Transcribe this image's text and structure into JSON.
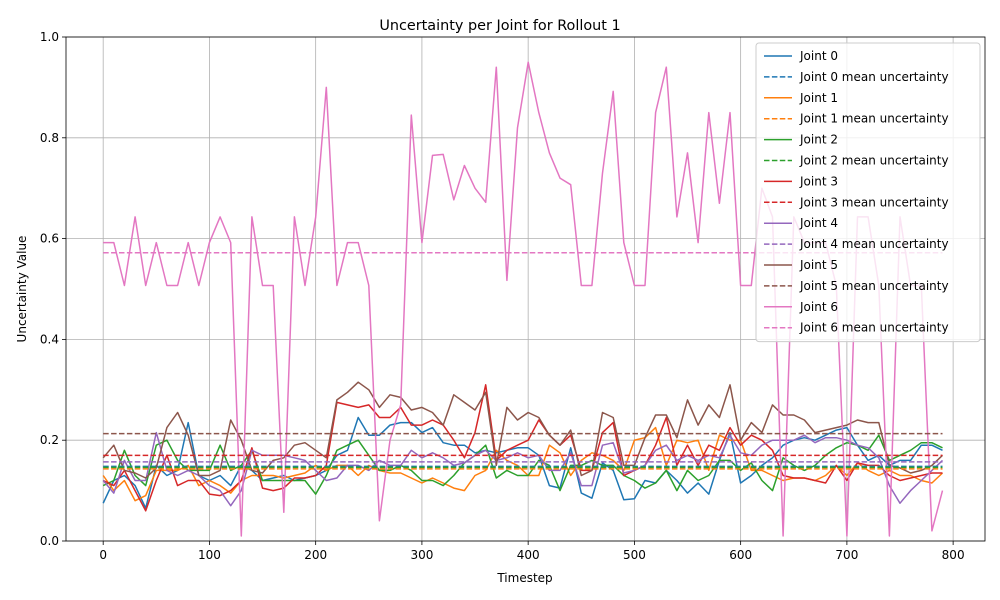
{
  "chart_data": {
    "type": "line",
    "title": "Uncertainty per Joint for Rollout 1",
    "xlabel": "Timestep",
    "ylabel": "Uncertainty Value",
    "xlim": [
      -35,
      830
    ],
    "ylim": [
      0.0,
      1.0
    ],
    "xticks": [
      "0",
      "100",
      "200",
      "300",
      "400",
      "500",
      "600",
      "700",
      "800"
    ],
    "yticks": [
      "0.0",
      "0.2",
      "0.4",
      "0.6",
      "0.8",
      "1.0"
    ],
    "grid": true,
    "legend_position": "top-right",
    "x": [
      0,
      10,
      20,
      30,
      40,
      50,
      60,
      70,
      80,
      90,
      100,
      110,
      120,
      130,
      140,
      150,
      160,
      170,
      180,
      190,
      200,
      210,
      220,
      230,
      240,
      250,
      260,
      270,
      280,
      290,
      300,
      310,
      320,
      330,
      340,
      350,
      360,
      370,
      380,
      390,
      400,
      410,
      420,
      430,
      440,
      450,
      460,
      470,
      480,
      490,
      500,
      510,
      520,
      530,
      540,
      550,
      560,
      570,
      580,
      590,
      600,
      610,
      620,
      630,
      640,
      650,
      660,
      670,
      680,
      690,
      700,
      710,
      720,
      730,
      740,
      750,
      760,
      770,
      780,
      790
    ],
    "series": [
      {
        "name": "Joint 0",
        "color": "#1f77b4",
        "mean": 0.148,
        "values": [
          0.075,
          0.12,
          0.13,
          0.11,
          0.065,
          0.15,
          0.13,
          0.14,
          0.235,
          0.13,
          0.12,
          0.13,
          0.11,
          0.15,
          0.14,
          0.12,
          0.125,
          0.13,
          0.12,
          0.125,
          0.13,
          0.14,
          0.17,
          0.18,
          0.245,
          0.21,
          0.21,
          0.23,
          0.235,
          0.235,
          0.215,
          0.225,
          0.195,
          0.19,
          0.19,
          0.175,
          0.18,
          0.175,
          0.18,
          0.185,
          0.185,
          0.17,
          0.11,
          0.105,
          0.185,
          0.095,
          0.085,
          0.155,
          0.14,
          0.082,
          0.084,
          0.12,
          0.115,
          0.14,
          0.12,
          0.095,
          0.115,
          0.093,
          0.16,
          0.215,
          0.115,
          0.13,
          0.15,
          0.165,
          0.19,
          0.2,
          0.205,
          0.2,
          0.21,
          0.22,
          0.225,
          0.19,
          0.16,
          0.17,
          0.15,
          0.16,
          0.16,
          0.19,
          0.19,
          0.18
        ]
      },
      {
        "name": "Joint 1",
        "color": "#ff7f0e",
        "mean": 0.143,
        "values": [
          0.13,
          0.1,
          0.12,
          0.08,
          0.09,
          0.14,
          0.14,
          0.14,
          0.15,
          0.11,
          0.12,
          0.11,
          0.095,
          0.12,
          0.13,
          0.13,
          0.13,
          0.125,
          0.13,
          0.135,
          0.15,
          0.14,
          0.15,
          0.15,
          0.13,
          0.15,
          0.14,
          0.135,
          0.135,
          0.125,
          0.115,
          0.125,
          0.115,
          0.105,
          0.1,
          0.13,
          0.14,
          0.18,
          0.16,
          0.15,
          0.13,
          0.13,
          0.19,
          0.175,
          0.13,
          0.16,
          0.175,
          0.17,
          0.16,
          0.14,
          0.2,
          0.205,
          0.225,
          0.15,
          0.2,
          0.195,
          0.2,
          0.14,
          0.21,
          0.2,
          0.2,
          0.14,
          0.14,
          0.13,
          0.12,
          0.125,
          0.125,
          0.12,
          0.13,
          0.15,
          0.13,
          0.155,
          0.14,
          0.13,
          0.14,
          0.13,
          0.13,
          0.12,
          0.115,
          0.135
        ]
      },
      {
        "name": "Joint 2",
        "color": "#2ca02c",
        "mean": 0.146,
        "values": [
          0.11,
          0.12,
          0.18,
          0.13,
          0.11,
          0.19,
          0.2,
          0.16,
          0.14,
          0.14,
          0.14,
          0.19,
          0.14,
          0.15,
          0.18,
          0.12,
          0.12,
          0.12,
          0.12,
          0.12,
          0.093,
          0.13,
          0.18,
          0.19,
          0.2,
          0.17,
          0.14,
          0.14,
          0.15,
          0.14,
          0.12,
          0.12,
          0.11,
          0.13,
          0.155,
          0.17,
          0.19,
          0.125,
          0.14,
          0.13,
          0.13,
          0.16,
          0.15,
          0.1,
          0.15,
          0.15,
          0.16,
          0.15,
          0.15,
          0.13,
          0.12,
          0.105,
          0.115,
          0.14,
          0.1,
          0.14,
          0.12,
          0.13,
          0.16,
          0.16,
          0.14,
          0.155,
          0.12,
          0.1,
          0.165,
          0.15,
          0.14,
          0.15,
          0.17,
          0.185,
          0.195,
          0.19,
          0.18,
          0.21,
          0.16,
          0.17,
          0.18,
          0.195,
          0.195,
          0.185
        ]
      },
      {
        "name": "Joint 3",
        "color": "#d62728",
        "mean": 0.17,
        "values": [
          0.12,
          0.11,
          0.14,
          0.1,
          0.06,
          0.12,
          0.17,
          0.11,
          0.12,
          0.12,
          0.093,
          0.09,
          0.1,
          0.12,
          0.185,
          0.105,
          0.1,
          0.105,
          0.125,
          0.125,
          0.13,
          0.15,
          0.275,
          0.27,
          0.265,
          0.27,
          0.245,
          0.245,
          0.265,
          0.23,
          0.23,
          0.24,
          0.23,
          0.2,
          0.165,
          0.215,
          0.31,
          0.16,
          0.18,
          0.19,
          0.2,
          0.24,
          0.21,
          0.19,
          0.21,
          0.14,
          0.14,
          0.215,
          0.235,
          0.13,
          0.14,
          0.15,
          0.19,
          0.245,
          0.15,
          0.19,
          0.15,
          0.19,
          0.18,
          0.225,
          0.19,
          0.21,
          0.2,
          0.18,
          0.13,
          0.125,
          0.125,
          0.12,
          0.115,
          0.15,
          0.12,
          0.155,
          0.15,
          0.15,
          0.13,
          0.12,
          0.125,
          0.13,
          0.135,
          0.135
        ]
      },
      {
        "name": "Joint 4",
        "color": "#9467bd",
        "mean": 0.157,
        "values": [
          0.12,
          0.095,
          0.16,
          0.12,
          0.12,
          0.215,
          0.14,
          0.13,
          0.14,
          0.13,
          0.11,
          0.1,
          0.07,
          0.1,
          0.18,
          0.17,
          0.17,
          0.17,
          0.165,
          0.16,
          0.14,
          0.12,
          0.125,
          0.15,
          0.15,
          0.14,
          0.16,
          0.15,
          0.15,
          0.18,
          0.165,
          0.175,
          0.165,
          0.15,
          0.155,
          0.17,
          0.18,
          0.16,
          0.165,
          0.175,
          0.165,
          0.17,
          0.14,
          0.14,
          0.175,
          0.11,
          0.11,
          0.19,
          0.195,
          0.135,
          0.14,
          0.15,
          0.18,
          0.19,
          0.16,
          0.17,
          0.16,
          0.17,
          0.165,
          0.21,
          0.175,
          0.17,
          0.19,
          0.2,
          0.2,
          0.2,
          0.21,
          0.195,
          0.205,
          0.205,
          0.2,
          0.19,
          0.185,
          0.165,
          0.11,
          0.075,
          0.1,
          0.12,
          0.14,
          0.16
        ]
      },
      {
        "name": "Joint 5",
        "color": "#8c564b",
        "mean": 0.213,
        "values": [
          0.165,
          0.19,
          0.14,
          0.135,
          0.125,
          0.145,
          0.225,
          0.255,
          0.21,
          0.13,
          0.13,
          0.14,
          0.24,
          0.2,
          0.14,
          0.135,
          0.16,
          0.165,
          0.19,
          0.195,
          0.18,
          0.165,
          0.28,
          0.295,
          0.315,
          0.3,
          0.265,
          0.29,
          0.285,
          0.26,
          0.265,
          0.255,
          0.23,
          0.29,
          0.275,
          0.26,
          0.295,
          0.15,
          0.265,
          0.24,
          0.255,
          0.245,
          0.21,
          0.19,
          0.22,
          0.13,
          0.14,
          0.255,
          0.245,
          0.15,
          0.15,
          0.205,
          0.25,
          0.25,
          0.205,
          0.28,
          0.23,
          0.27,
          0.245,
          0.31,
          0.2,
          0.235,
          0.215,
          0.27,
          0.25,
          0.25,
          0.24,
          0.215,
          0.22,
          0.225,
          0.23,
          0.24,
          0.235,
          0.235,
          0.15,
          0.145,
          0.135,
          0.14,
          0.15,
          0.17
        ]
      },
      {
        "name": "Joint 6",
        "color": "#e377c2",
        "mean": 0.572,
        "values": [
          0.592,
          0.592,
          0.507,
          0.643,
          0.507,
          0.592,
          0.507,
          0.507,
          0.592,
          0.507,
          0.592,
          0.643,
          0.592,
          0.01,
          0.643,
          0.507,
          0.507,
          0.057,
          0.643,
          0.507,
          0.643,
          0.9,
          0.507,
          0.592,
          0.592,
          0.507,
          0.04,
          0.2,
          0.27,
          0.845,
          0.592,
          0.765,
          0.767,
          0.677,
          0.745,
          0.7,
          0.672,
          0.94,
          0.517,
          0.82,
          0.95,
          0.85,
          0.77,
          0.72,
          0.707,
          0.507,
          0.507,
          0.73,
          0.892,
          0.592,
          0.507,
          0.507,
          0.85,
          0.94,
          0.643,
          0.77,
          0.592,
          0.85,
          0.67,
          0.85,
          0.507,
          0.507,
          0.7,
          0.643,
          0.01,
          0.643,
          0.592,
          0.592,
          0.592,
          0.507,
          0.01,
          0.643,
          0.643,
          0.507,
          0.01,
          0.643,
          0.507,
          0.507,
          0.02,
          0.1
        ]
      }
    ]
  }
}
